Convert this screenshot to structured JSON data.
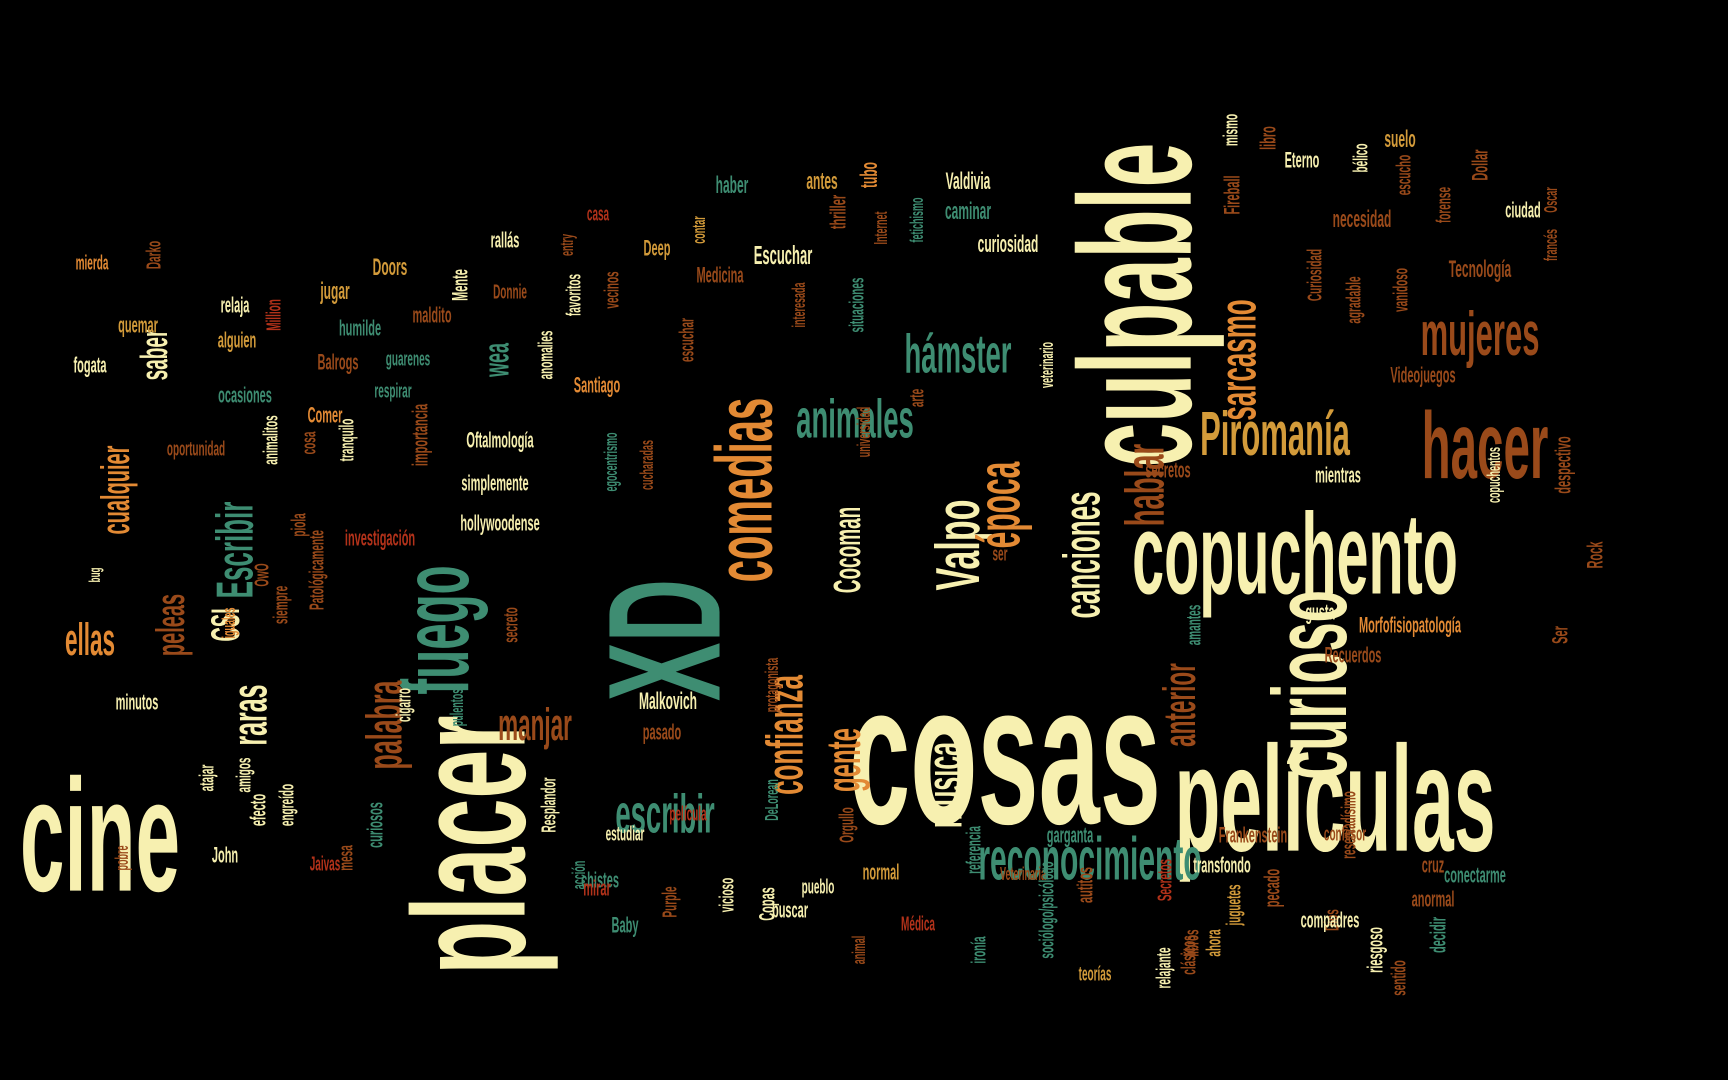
{
  "palette": {
    "cream": "#f7f0b0",
    "orange": "#e38a34",
    "teal": "#3e8d72",
    "brown": "#9a4a1a",
    "gold": "#d39b3a",
    "red": "#b3321a",
    "sand": "#e6b55a"
  },
  "words": [
    {
      "text": "cosas",
      "c": "cream"
    },
    {
      "text": "películas",
      "c": "cream"
    },
    {
      "text": "cine",
      "c": "cream"
    },
    {
      "text": "placer",
      "c": "cream"
    },
    {
      "text": "culpable",
      "c": "cream"
    },
    {
      "text": "copuchento",
      "c": "cream"
    },
    {
      "text": "XD",
      "c": "teal"
    },
    {
      "text": "comedias",
      "c": "orange"
    },
    {
      "text": "curioso",
      "c": "cream"
    },
    {
      "text": "fuego",
      "c": "teal"
    },
    {
      "text": "hacer",
      "c": "brown"
    },
    {
      "text": "mujeres",
      "c": "brown"
    },
    {
      "text": "Piromanía",
      "c": "gold"
    },
    {
      "text": "reconocimiento",
      "c": "teal"
    },
    {
      "text": "Valpo",
      "c": "cream"
    },
    {
      "text": "época",
      "c": "orange"
    },
    {
      "text": "hámster",
      "c": "teal"
    },
    {
      "text": "animales",
      "c": "teal"
    },
    {
      "text": "canciones",
      "c": "cream"
    },
    {
      "text": "hablar",
      "c": "brown"
    },
    {
      "text": "sarcasmo",
      "c": "orange"
    },
    {
      "text": "confianza",
      "c": "orange"
    },
    {
      "text": "escribir",
      "c": "teal"
    },
    {
      "text": "Escribir",
      "c": "teal"
    },
    {
      "text": "gente",
      "c": "orange"
    },
    {
      "text": "música",
      "c": "cream"
    },
    {
      "text": "manjar",
      "c": "brown"
    },
    {
      "text": "palabra",
      "c": "brown"
    },
    {
      "text": "anterior",
      "c": "brown"
    },
    {
      "text": "raras",
      "c": "cream"
    },
    {
      "text": "cualquier",
      "c": "orange"
    },
    {
      "text": "ellas",
      "c": "orange"
    },
    {
      "text": "peleas",
      "c": "brown"
    },
    {
      "text": "CSI",
      "c": "cream"
    },
    {
      "text": "saber",
      "c": "cream"
    },
    {
      "text": "wea",
      "c": "teal"
    },
    {
      "text": "Cocoman",
      "c": "cream"
    },
    {
      "text": "Malkovich",
      "c": "cream"
    },
    {
      "text": "Morfofisiopatología",
      "c": "orange"
    },
    {
      "text": "mierda",
      "c": "orange"
    },
    {
      "text": "Darko",
      "c": "brown"
    },
    {
      "text": "quemar",
      "c": "gold"
    },
    {
      "text": "relaja",
      "c": "cream"
    },
    {
      "text": "jugar",
      "c": "gold"
    },
    {
      "text": "Doors",
      "c": "gold"
    },
    {
      "text": "Mente",
      "c": "cream"
    },
    {
      "text": "rallás",
      "c": "cream"
    },
    {
      "text": "entry",
      "c": "brown"
    },
    {
      "text": "casa",
      "c": "red"
    },
    {
      "text": "Deep",
      "c": "gold"
    },
    {
      "text": "contar",
      "c": "gold"
    },
    {
      "text": "haber",
      "c": "teal"
    },
    {
      "text": "antes",
      "c": "gold"
    },
    {
      "text": "tubo",
      "c": "orange"
    },
    {
      "text": "Valdivia",
      "c": "cream"
    },
    {
      "text": "thriller",
      "c": "brown"
    },
    {
      "text": "Internet",
      "c": "brown"
    },
    {
      "text": "caminar",
      "c": "teal"
    },
    {
      "text": "curiosidad",
      "c": "cream"
    },
    {
      "text": "fetichismo",
      "c": "teal"
    },
    {
      "text": "Escuchar",
      "c": "cream"
    },
    {
      "text": "Medicina",
      "c": "brown"
    },
    {
      "text": "mismo",
      "c": "cream"
    },
    {
      "text": "libro",
      "c": "brown"
    },
    {
      "text": "Fireball",
      "c": "brown"
    },
    {
      "text": "Eterno",
      "c": "cream"
    },
    {
      "text": "bélico",
      "c": "cream"
    },
    {
      "text": "suelo",
      "c": "gold"
    },
    {
      "text": "escucho",
      "c": "brown"
    },
    {
      "text": "necesidad",
      "c": "brown"
    },
    {
      "text": "forense",
      "c": "brown"
    },
    {
      "text": "Dollar",
      "c": "brown"
    },
    {
      "text": "ciudad",
      "c": "cream"
    },
    {
      "text": "francés",
      "c": "brown"
    },
    {
      "text": "Oscar",
      "c": "brown"
    },
    {
      "text": "Tecnología",
      "c": "brown"
    },
    {
      "text": "Curiosidad",
      "c": "brown"
    },
    {
      "text": "agradable",
      "c": "brown"
    },
    {
      "text": "vanidoso",
      "c": "brown"
    },
    {
      "text": "Videojuegos",
      "c": "brown"
    },
    {
      "text": "veterinario",
      "c": "cream"
    },
    {
      "text": "interesada",
      "c": "brown"
    },
    {
      "text": "situaciones",
      "c": "teal"
    },
    {
      "text": "alguien",
      "c": "gold"
    },
    {
      "text": "Million",
      "c": "red"
    },
    {
      "text": "humilde",
      "c": "teal"
    },
    {
      "text": "maldito",
      "c": "brown"
    },
    {
      "text": "Donnie",
      "c": "brown"
    },
    {
      "text": "vecinos",
      "c": "brown"
    },
    {
      "text": "favoritos",
      "c": "cream"
    },
    {
      "text": "anomalies",
      "c": "cream"
    },
    {
      "text": "escuchar",
      "c": "brown"
    },
    {
      "text": "fogata",
      "c": "cream"
    },
    {
      "text": "Balrogs",
      "c": "brown"
    },
    {
      "text": "guarenes",
      "c": "teal"
    },
    {
      "text": "ocasiones",
      "c": "teal"
    },
    {
      "text": "respirar",
      "c": "teal"
    },
    {
      "text": "Santiago",
      "c": "orange"
    },
    {
      "text": "Comer",
      "c": "orange"
    },
    {
      "text": "oportunidad",
      "c": "brown"
    },
    {
      "text": "animalitos",
      "c": "cream"
    },
    {
      "text": "cosa",
      "c": "brown"
    },
    {
      "text": "tranquilo",
      "c": "cream"
    },
    {
      "text": "importancia",
      "c": "brown"
    },
    {
      "text": "Oftalmología",
      "c": "cream"
    },
    {
      "text": "simplemente",
      "c": "cream"
    },
    {
      "text": "hollywoodense",
      "c": "cream"
    },
    {
      "text": "investigación",
      "c": "red"
    },
    {
      "text": "egocentrismo",
      "c": "teal"
    },
    {
      "text": "cucharadas",
      "c": "brown"
    },
    {
      "text": "arte",
      "c": "brown"
    },
    {
      "text": "universidad",
      "c": "brown"
    },
    {
      "text": "secretos",
      "c": "brown"
    },
    {
      "text": "mientras",
      "c": "cream"
    },
    {
      "text": "copuchentos",
      "c": "cream"
    },
    {
      "text": "despectivo",
      "c": "brown"
    },
    {
      "text": "Rock",
      "c": "brown"
    },
    {
      "text": "piola",
      "c": "brown"
    },
    {
      "text": "Patológicamente",
      "c": "brown"
    },
    {
      "text": "bug",
      "c": "cream"
    },
    {
      "text": "OwO",
      "c": "brown"
    },
    {
      "text": "siempre",
      "c": "brown"
    },
    {
      "text": "iguales",
      "c": "orange"
    },
    {
      "text": "ser",
      "c": "brown"
    },
    {
      "text": "gusta",
      "c": "cream"
    },
    {
      "text": "Recuerdos",
      "c": "brown"
    },
    {
      "text": "Ser",
      "c": "brown"
    },
    {
      "text": "amantes",
      "c": "teal"
    },
    {
      "text": "secreto",
      "c": "brown"
    },
    {
      "text": "minutos",
      "c": "cream"
    },
    {
      "text": "cigarro",
      "c": "cream"
    },
    {
      "text": "pulentosa",
      "c": "teal"
    },
    {
      "text": "protagonista",
      "c": "brown"
    },
    {
      "text": "pasado",
      "c": "brown"
    },
    {
      "text": "atajar",
      "c": "cream"
    },
    {
      "text": "amigos",
      "c": "cream"
    },
    {
      "text": "efecto",
      "c": "cream"
    },
    {
      "text": "engreído",
      "c": "cream"
    },
    {
      "text": "John",
      "c": "cream"
    },
    {
      "text": "Jaivas",
      "c": "red"
    },
    {
      "text": "pobre",
      "c": "brown"
    },
    {
      "text": "curiosos",
      "c": "teal"
    },
    {
      "text": "mesa",
      "c": "brown"
    },
    {
      "text": "Resplandor",
      "c": "cream"
    },
    {
      "text": "acción",
      "c": "teal"
    },
    {
      "text": "estudiar",
      "c": "cream"
    },
    {
      "text": "chistes",
      "c": "teal"
    },
    {
      "text": "película",
      "c": "red"
    },
    {
      "text": "Orgullo",
      "c": "brown"
    },
    {
      "text": "DeLorean",
      "c": "teal"
    },
    {
      "text": "Purple",
      "c": "brown"
    },
    {
      "text": "Baby",
      "c": "teal"
    },
    {
      "text": "mirar",
      "c": "red"
    },
    {
      "text": "vicioso",
      "c": "cream"
    },
    {
      "text": "Copas",
      "c": "cream"
    },
    {
      "text": "buscar",
      "c": "cream"
    },
    {
      "text": "pueblo",
      "c": "cream"
    },
    {
      "text": "normal",
      "c": "gold"
    },
    {
      "text": "Veterinaria",
      "c": "brown"
    },
    {
      "text": "Médica",
      "c": "red"
    },
    {
      "text": "animal",
      "c": "brown"
    },
    {
      "text": "referencia",
      "c": "teal"
    },
    {
      "text": "ironía",
      "c": "teal"
    },
    {
      "text": "sociólogo/psicólogo",
      "c": "teal"
    },
    {
      "text": "autitos",
      "c": "brown"
    },
    {
      "text": "garganta",
      "c": "teal"
    },
    {
      "text": "Secretos",
      "c": "red"
    },
    {
      "text": "relajante",
      "c": "cream"
    },
    {
      "text": "teorías",
      "c": "gold"
    },
    {
      "text": "clásicos",
      "c": "brown"
    },
    {
      "text": "juguetes",
      "c": "gold"
    },
    {
      "text": "transfondo",
      "c": "cream"
    },
    {
      "text": "libros",
      "c": "brown"
    },
    {
      "text": "Frankenstein",
      "c": "brown"
    },
    {
      "text": "Dios",
      "c": "brown"
    },
    {
      "text": "pecado",
      "c": "brown"
    },
    {
      "text": "ahora",
      "c": "gold"
    },
    {
      "text": "compadres",
      "c": "cream"
    },
    {
      "text": "sentido",
      "c": "brown"
    },
    {
      "text": "riesgoso",
      "c": "cream"
    },
    {
      "text": "anormal",
      "c": "brown"
    },
    {
      "text": "decidir",
      "c": "teal"
    },
    {
      "text": "conectarme",
      "c": "teal"
    },
    {
      "text": "confesor",
      "c": "brown"
    },
    {
      "text": "cruz",
      "c": "brown"
    },
    {
      "text": "reservadísimo",
      "c": "brown"
    },
    {
      "text": "años",
      "c": "brown"
    }
  ]
}
